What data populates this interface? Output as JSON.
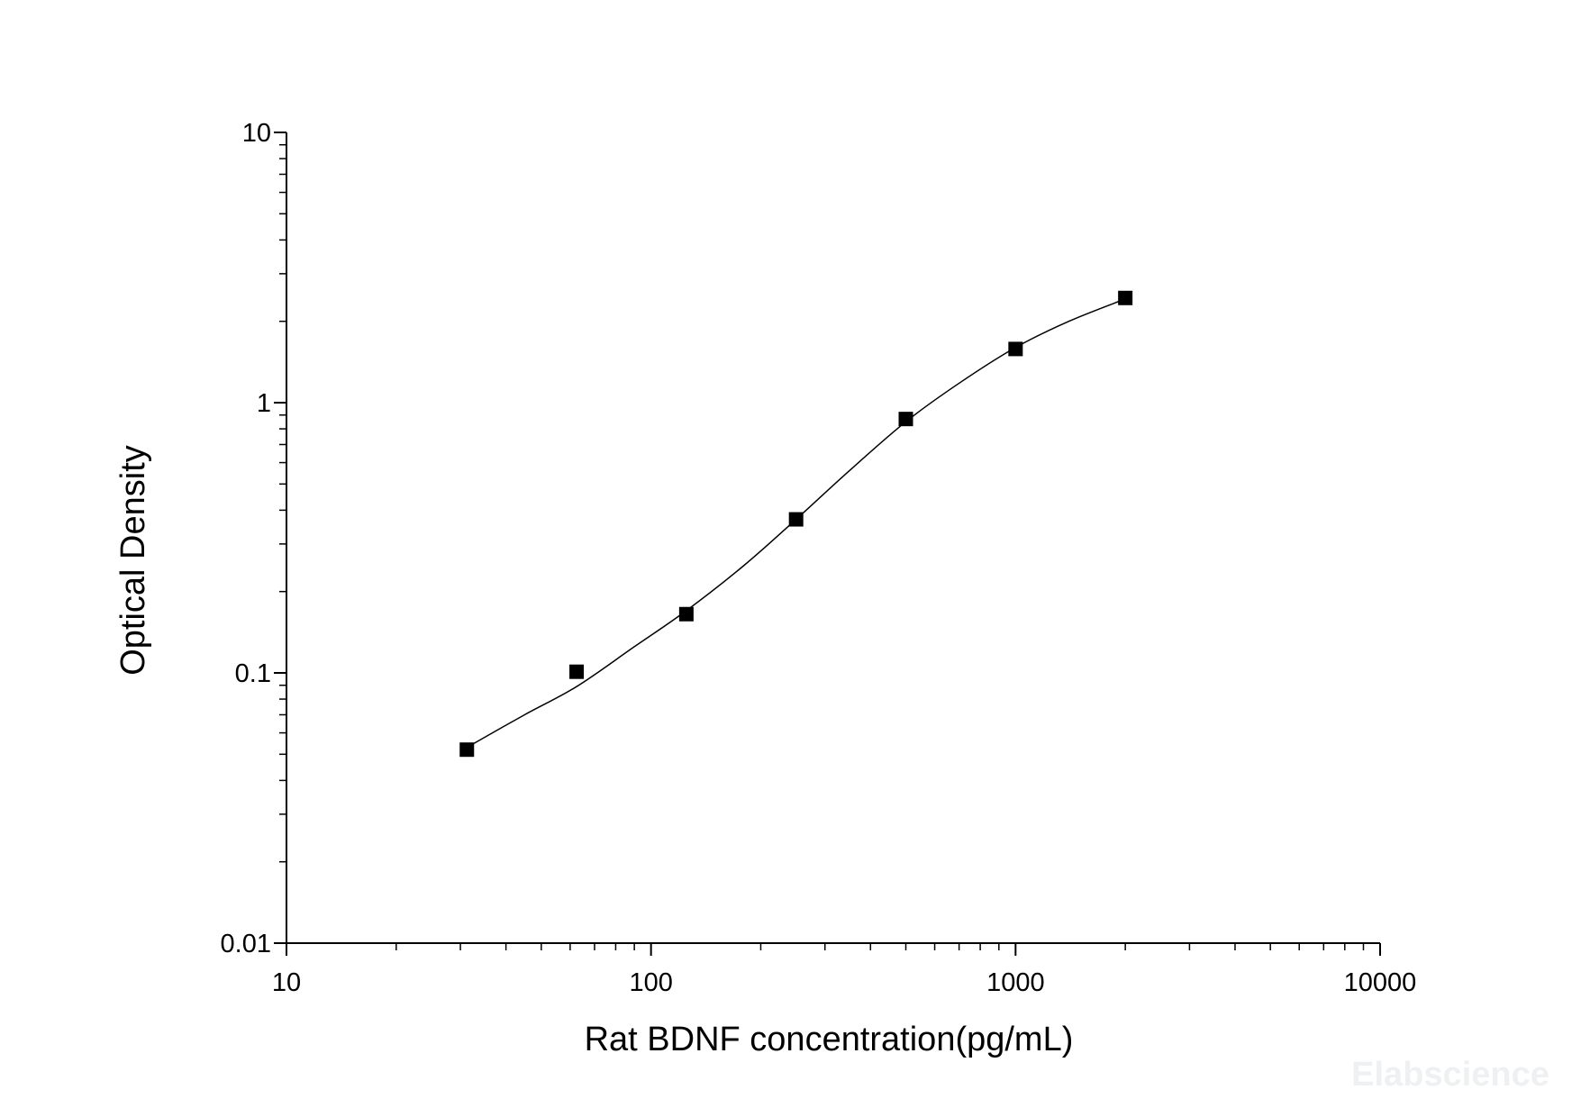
{
  "chart_data": {
    "type": "scatter",
    "title": "",
    "xlabel": "Rat BDNF concentration(pg/mL)",
    "ylabel": "Optical Density",
    "x_scale": "log",
    "y_scale": "log",
    "xlim": [
      10,
      10000
    ],
    "ylim": [
      0.01,
      10
    ],
    "x_ticks": [
      "10",
      "100",
      "1000",
      "10000"
    ],
    "y_ticks": [
      "0.01",
      "0.1",
      "1",
      "10"
    ],
    "grid": false,
    "legend": "none",
    "series": [
      {
        "marker": "square",
        "color": "#000000",
        "x": [
          31.25,
          62.5,
          125,
          250,
          500,
          1000,
          2000
        ],
        "y": [
          0.052,
          0.101,
          0.165,
          0.37,
          0.87,
          1.58,
          2.44
        ]
      }
    ],
    "fit_curve": {
      "style": "line",
      "color": "#000000",
      "x": [
        31.25,
        45,
        62.5,
        90,
        125,
        180,
        250,
        350,
        500,
        700,
        1000,
        1400,
        2000
      ],
      "y": [
        0.053,
        0.07,
        0.089,
        0.125,
        0.17,
        0.25,
        0.37,
        0.56,
        0.85,
        1.18,
        1.6,
        2.0,
        2.42
      ]
    }
  },
  "watermark": "Elabscience"
}
